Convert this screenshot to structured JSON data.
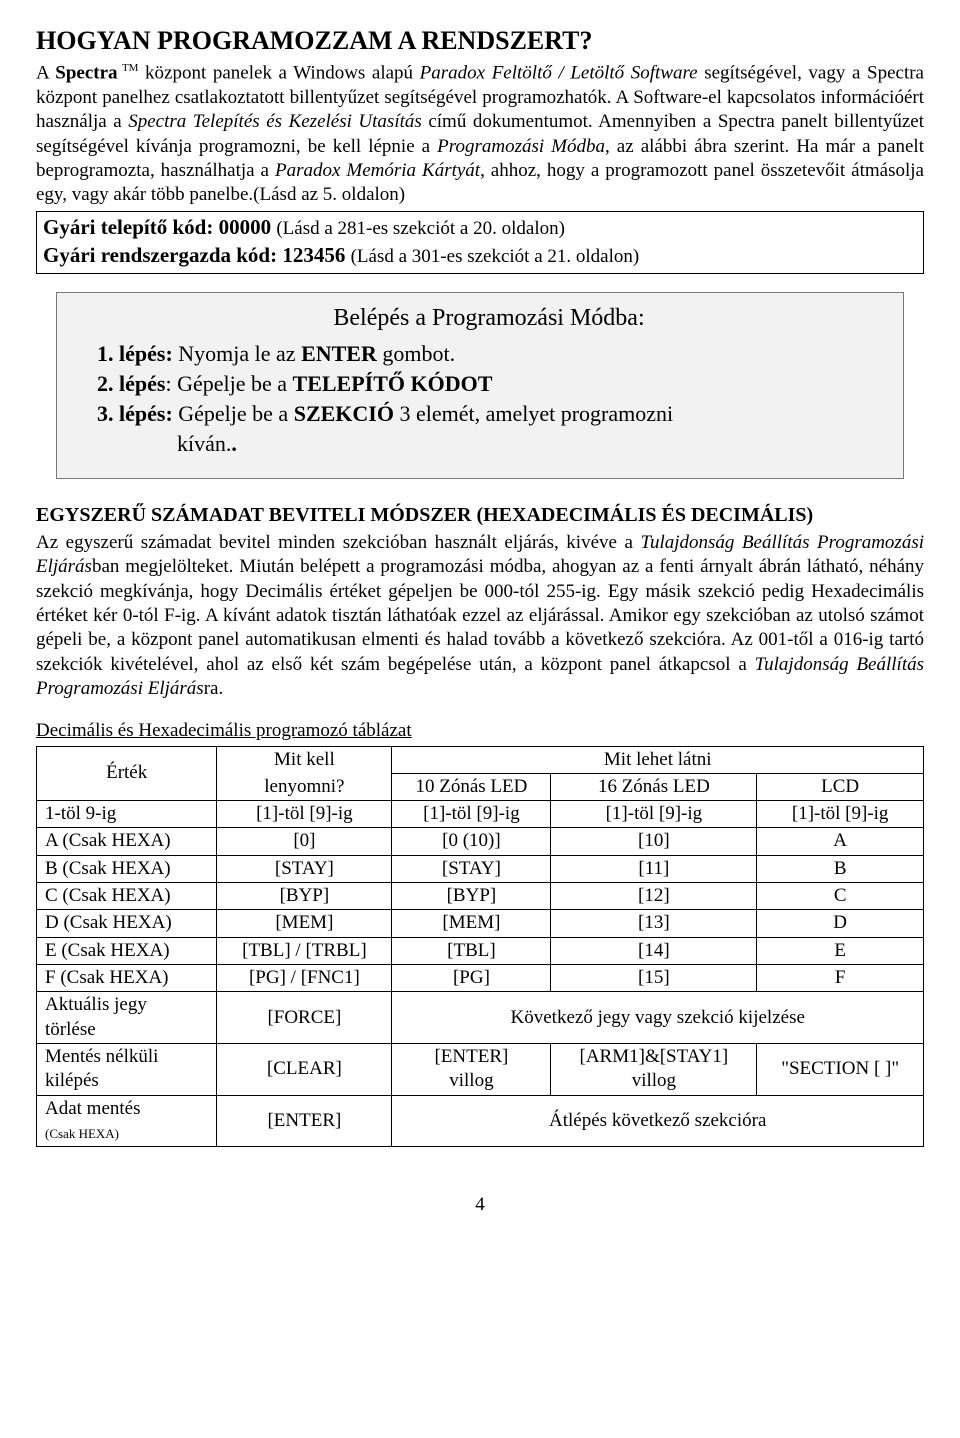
{
  "title": "HOGYAN PROGRAMOZZAM A RENDSZERT?",
  "intro": {
    "p1a": "A ",
    "p1b": "Spectra",
    "p1tm": " TM",
    "p1c": " központ panelek a Windows alapú ",
    "p1d": "Paradox Feltöltő / Letöltő Software",
    "p1e": " segítségével, vagy a Spectra központ panelhez csatlakoztatott billentyűzet segítségével programozhatók. A Software-el kapcsolatos információért használja a ",
    "p1f": "Spectra Telepítés és Kezelési Utasítás",
    "p1g": " című dokumentumot. Amennyiben a Spectra panelt billentyűzet segítségével kívánja programozni, be kell lépnie a ",
    "p1h": "Programozási Módba",
    "p1i": ", az alábbi ábra szerint. Ha már a panelt beprogramozta, használhatja a ",
    "p1j": "Paradox Memória Kártyát,",
    "p1k": " ahhoz, hogy a programozott panel összetevőit átmásolja egy, vagy akár több panelbe.(Lásd az 5. oldalon)"
  },
  "codes": {
    "l1b": "Gyári telepítő kód: 00000 ",
    "l1r": "(Lásd a 281-es szekciót a 20. oldalon)",
    "l2b": "Gyári rendszergazda kód: 123456 ",
    "l2r": "(Lásd a 301-es szekciót a 21. oldalon)"
  },
  "steps": {
    "title": "Belépés a Programozási Módba:",
    "s1a": "1. lépés:",
    "s1b": " Nyomja le az ",
    "s1c": "ENTER",
    "s1d": " gombot.",
    "s2a": "2. lépés",
    "s2b": ": Gépelje be a ",
    "s2c": "TELEPÍTŐ KÓDOT",
    "s3a": "3. lépés:",
    "s3b": " Gépelje be a ",
    "s3c": "SZEKCIÓ",
    "s3d": " 3 elemét, amelyet programozni",
    "s3e": "kíván."
  },
  "section2": {
    "heading": "EGYSZERŰ SZÁMADAT BEVITELI MÓDSZER (HEXADECIMÁLIS ÉS DECIMÁLIS)",
    "p_a": "Az egyszerű számadat bevitel minden szekcióban használt eljárás, kivéve a ",
    "p_b": "Tulajdonság Beállítás Programozási Eljárás",
    "p_c": "ban megjelölteket. Miután belépett a programozási módba, ahogyan az a fenti árnyalt ábrán látható, néhány szekció megkívánja, hogy Decimális értéket gépeljen be 000-tól 255-ig. Egy másik szekció pedig Hexadecimális értéket kér 0-tól F-ig. A kívánt adatok tisztán láthatóak ezzel az eljárással. Amikor egy szekcióban az utolsó számot gépeli be, a központ panel automatikusan elmenti és halad tovább a következő szekcióra. Az 001-től a 016-ig tartó szekciók kivételével, ahol az első két szám begépelése után, a központ panel átkapcsol a ",
    "p_d": "Tulajdonság Beállítás Programozási Eljárás",
    "p_e": "ra."
  },
  "table": {
    "caption": "Decimális és Hexadecimális programozó táblázat",
    "h_ertek": "Érték",
    "h_mitkell": "Mit kell",
    "h_lenyomni": "lenyomni?",
    "h_mitlehet": "Mit lehet látni",
    "h_10led": "10 Zónás LED",
    "h_16led": "16 Zónás LED",
    "h_lcd": "LCD",
    "rows": [
      {
        "c0": "1-töl 9-ig",
        "c1": "[1]-töl [9]-ig",
        "c2": "[1]-töl [9]-ig",
        "c3": "[1]-töl [9]-ig",
        "c4": "[1]-töl [9]-ig"
      },
      {
        "c0": "A (Csak HEXA)",
        "c1": "[0]",
        "c2": "[0 (10)]",
        "c3": "[10]",
        "c4": "A"
      },
      {
        "c0": "B (Csak HEXA)",
        "c1": "[STAY]",
        "c2": "[STAY]",
        "c3": "[11]",
        "c4": "B"
      },
      {
        "c0": "C (Csak HEXA)",
        "c1": "[BYP]",
        "c2": "[BYP]",
        "c3": "[12]",
        "c4": "C"
      },
      {
        "c0": "D (Csak HEXA)",
        "c1": "[MEM]",
        "c2": "[MEM]",
        "c3": "[13]",
        "c4": "D"
      },
      {
        "c0": "E (Csak HEXA)",
        "c1": "[TBL] / [TRBL]",
        "c2": "[TBL]",
        "c3": "[14]",
        "c4": "E"
      },
      {
        "c0": "F (Csak HEXA)",
        "c1": "[PG] / [FNC1]",
        "c2": "[PG]",
        "c3": "[15]",
        "c4": "F"
      }
    ],
    "r8": {
      "c0a": "Aktuális jegy",
      "c0b": "törlése",
      "c1": "[FORCE]",
      "span": "Következő jegy vagy szekció kijelzése"
    },
    "r9": {
      "c0a": "Mentés nélküli",
      "c0b": "kilépés",
      "c1": "[CLEAR]",
      "c2a": "[ENTER]",
      "c2b": "villog",
      "c3a": "[ARM1]&[STAY1]",
      "c3b": "villog",
      "c4": "\"SECTION [  ]\""
    },
    "r10": {
      "c0a": "Adat mentés",
      "c0b": "(Csak HEXA)",
      "c1": "[ENTER]",
      "span": "Átlépés következő szekcióra"
    }
  },
  "page_number": "4"
}
